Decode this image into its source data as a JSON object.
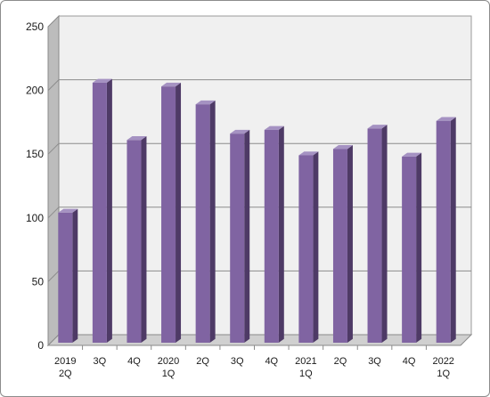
{
  "chart_data": {
    "type": "bar",
    "title": "",
    "xlabel": "",
    "ylabel": "",
    "categories": [
      [
        "2019",
        "2Q"
      ],
      [
        "3Q"
      ],
      [
        "4Q"
      ],
      [
        "2020",
        "1Q"
      ],
      [
        "2Q"
      ],
      [
        "3Q"
      ],
      [
        "4Q"
      ],
      [
        "2021",
        "1Q"
      ],
      [
        "2Q"
      ],
      [
        "3Q"
      ],
      [
        "4Q"
      ],
      [
        "2022",
        "1Q"
      ]
    ],
    "values": [
      102,
      204,
      159,
      201,
      187,
      164,
      167,
      147,
      152,
      168,
      146,
      174
    ],
    "ylim": [
      0,
      250
    ],
    "yticks": [
      0,
      50,
      100,
      150,
      200,
      250
    ],
    "grid": true,
    "legend": "none",
    "colors": {
      "bar_front": "#8064a2",
      "bar_side": "#4e3a66",
      "bar_top": "#a592c2",
      "wall": "#f0f0f0",
      "wall_side": "#bcbcbc",
      "floor": "#d0d0d0",
      "grid": "#8c8c8c"
    }
  }
}
